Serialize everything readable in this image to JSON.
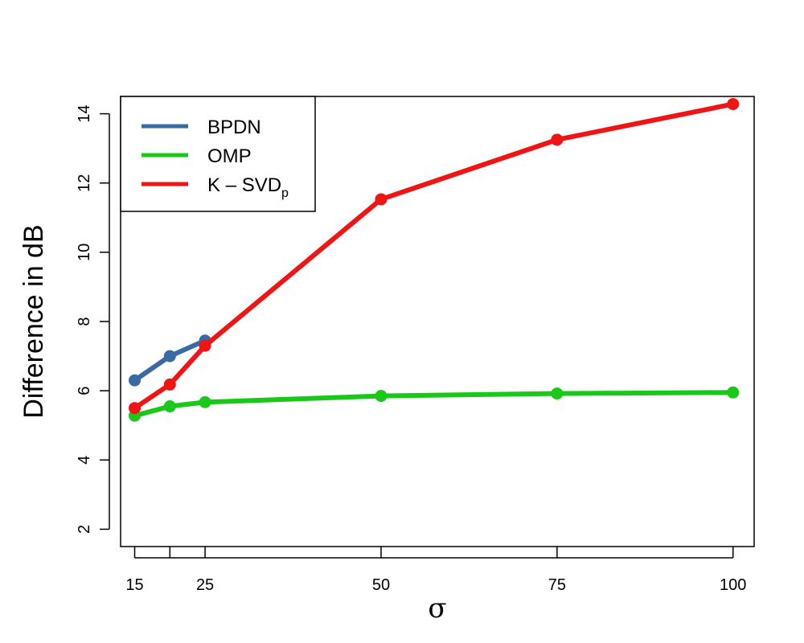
{
  "chart_data": {
    "type": "line",
    "xlabel": "σ",
    "ylabel": "Difference in dB",
    "xlim": [
      13,
      103
    ],
    "ylim": [
      1.5,
      14.5
    ],
    "x_ticks": [
      15,
      20,
      25,
      50,
      75,
      100
    ],
    "x_tick_labels": [
      "15",
      "",
      "25",
      "50",
      "75",
      "100"
    ],
    "y_ticks": [
      2,
      4,
      6,
      8,
      10,
      12,
      14
    ],
    "y_tick_labels": [
      "2",
      "4",
      "6",
      "8",
      "10",
      "12",
      "14"
    ],
    "grid": false,
    "legend_position": "top-left",
    "series": [
      {
        "name": "BPDN",
        "legend_main": "BPDN",
        "legend_sub": "",
        "color": "#3a6aa5",
        "x": [
          15,
          20,
          25
        ],
        "y": [
          6.3,
          7.0,
          7.45
        ]
      },
      {
        "name": "OMP",
        "legend_main": "OMP",
        "legend_sub": "",
        "color": "#19c819",
        "x": [
          15,
          20,
          25,
          50,
          75,
          100
        ],
        "y": [
          5.28,
          5.55,
          5.67,
          5.85,
          5.92,
          5.95
        ]
      },
      {
        "name": "K – SVDp",
        "legend_main": "K – SVD",
        "legend_sub": "p",
        "color": "#f01414",
        "x": [
          15,
          20,
          25,
          50,
          75,
          100
        ],
        "y": [
          5.5,
          6.18,
          7.3,
          11.53,
          13.25,
          14.28
        ]
      }
    ]
  }
}
